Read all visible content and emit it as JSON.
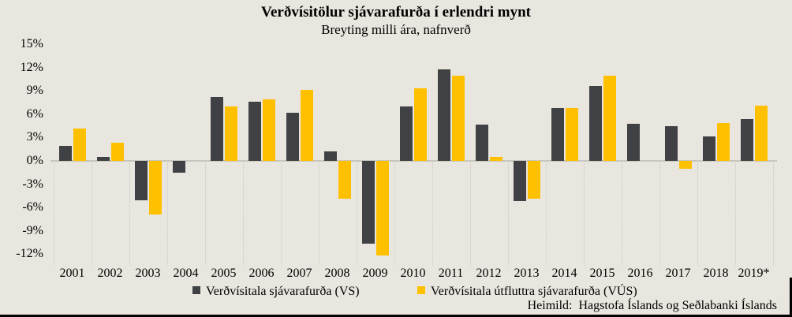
{
  "title": "Verðvísitölur sjávarafurða í erlendri mynt",
  "subtitle": "Breyting milli ára, nafnverð",
  "source": "Heimild:  Hagstofa Íslands og Seðlabanki Íslands",
  "colors": {
    "vs_bar": "#404144",
    "vus_bar": "#ffc000",
    "background": "#e9e6df",
    "zero_line": "#c8c5bd",
    "border": "#000000"
  },
  "chart_data": {
    "type": "bar",
    "title": "Verðvísitölur sjávarafurða í erlendri mynt",
    "subtitle": "Breyting milli ára, nafnverð",
    "categories": [
      "2001",
      "2002",
      "2003",
      "2004",
      "2005",
      "2006",
      "2007",
      "2008",
      "2009",
      "2010",
      "2011",
      "2012",
      "2013",
      "2014",
      "2015",
      "2016",
      "2017",
      "2018",
      "2019*"
    ],
    "series": [
      {
        "name": "Verðvísitala sjávarafurða (VS)",
        "color": "#404144",
        "values": [
          1.9,
          0.5,
          -5.1,
          -1.5,
          8.2,
          7.6,
          6.2,
          1.2,
          -10.7,
          7.0,
          11.8,
          4.7,
          -5.2,
          6.8,
          9.7,
          4.8,
          4.5,
          3.1,
          5.4
        ]
      },
      {
        "name": "Verðvísitala útfluttra sjávarafurða (VÚS)",
        "color": "#ffc000",
        "values": [
          4.2,
          2.3,
          -6.9,
          null,
          7.0,
          7.9,
          9.1,
          -4.9,
          -12.2,
          9.4,
          11.0,
          0.5,
          -4.9,
          6.8,
          11.0,
          null,
          -1.0,
          4.9,
          7.1
        ]
      }
    ],
    "y_ticks": [
      {
        "label": "15%",
        "value": 15
      },
      {
        "label": "12%",
        "value": 12
      },
      {
        "label": "9%",
        "value": 9
      },
      {
        "label": "6%",
        "value": 6
      },
      {
        "label": "3%",
        "value": 3
      },
      {
        "label": "0%",
        "value": 0
      },
      {
        "label": "-3%",
        "value": -3
      },
      {
        "label": "-6%",
        "value": -6
      },
      {
        "label": "-9%",
        "value": -9
      },
      {
        "label": "-12%",
        "value": -12
      }
    ],
    "ylim": [
      -12,
      15
    ],
    "unit": "%",
    "grid": "none",
    "legend_position": "bottom"
  }
}
